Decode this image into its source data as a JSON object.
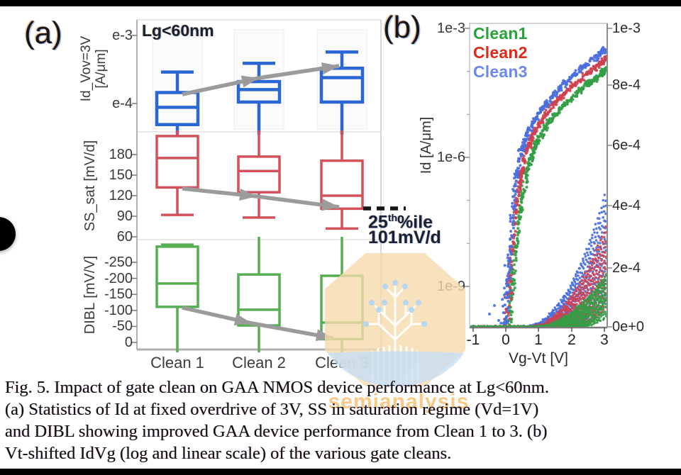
{
  "figure": {
    "panel_a_label": "(a)",
    "panel_b_label": "(b)",
    "arrow_color": "#9b9b9b",
    "annotation": {
      "p1": "25",
      "sup": "th",
      "p2": "%ile",
      "value": "101mV/d"
    }
  },
  "chart_data": [
    {
      "type": "box",
      "title": "Lg<60nm",
      "categories": [
        "Clean 1",
        "Clean 2",
        "Clean 3"
      ],
      "trend_arrows": "gray arrows from Clean 1 to Clean 2 to Clean 3 in each subplot",
      "annotation": "25th%ile 101mV/d (dashed line at SS_sat 25th percentile of Clean 3)",
      "subplots": [
        {
          "name": "Id_Vov=3V",
          "unit": "[A/μm]",
          "scale": "log",
          "color": "#2a66d4",
          "yticks": [
            "e-3",
            "e-4"
          ],
          "boxes": [
            {
              "category": "Clean 1",
              "whisker_high": 0.00029,
              "q3": 0.000145,
              "median": 8.8e-05,
              "q1": 4.9e-05,
              "whisker_low": null
            },
            {
              "category": "Clean 2",
              "whisker_high": 0.00039,
              "q3": 0.00021,
              "median": 0.00016,
              "q1": 0.000105,
              "whisker_low": null
            },
            {
              "category": "Clean 3",
              "whisker_high": 0.00057,
              "q3": 0.00033,
              "median": 0.00024,
              "q1": 0.000105,
              "whisker_low": null
            }
          ]
        },
        {
          "name": "SS_sat",
          "unit": "[mV/d]",
          "scale": "linear",
          "color": "#d4505b",
          "yticks": [
            180,
            150,
            120,
            90,
            60
          ],
          "boxes": [
            {
              "category": "Clean 1",
              "whisker_high": null,
              "q3": 207,
              "median": 175,
              "q1": 132,
              "whisker_low": 92
            },
            {
              "category": "Clean 2",
              "whisker_high": null,
              "q3": 177,
              "median": 156,
              "q1": 125,
              "whisker_low": 88
            },
            {
              "category": "Clean 3",
              "whisker_high": null,
              "q3": 171,
              "median": 120,
              "q1": 101,
              "whisker_low": 72
            }
          ]
        },
        {
          "name": "DIBL",
          "unit": "[mV/V]",
          "scale": "linear-inverted",
          "color": "#55ae52",
          "yticks": [
            -250,
            -200,
            -150,
            -100,
            -50,
            0
          ],
          "boxes": [
            {
              "category": "Clean 1",
              "whisker_high": -305,
              "q3": -299,
              "median": -184,
              "q1": -111,
              "whisker_low": null
            },
            {
              "category": "Clean 2",
              "whisker_high": null,
              "q3": -212,
              "median": -102,
              "q1": -53,
              "whisker_low": null
            },
            {
              "category": "Clean 3",
              "whisker_high": null,
              "q3": -208,
              "median": -62,
              "q1": -10,
              "whisker_low": null
            }
          ]
        }
      ]
    },
    {
      "type": "scatter",
      "title": "Vt-shifted IdVg (log and linear scale)",
      "xlabel": "Vg-Vt [V]",
      "xticks": [
        "-1",
        "0",
        "1",
        "2",
        "3"
      ],
      "x_range": [
        -1.1,
        3.05
      ],
      "left_axis": {
        "scale": "log",
        "label": "Id [A/μm]",
        "ticks": [
          "1e-3",
          "1e-6",
          "1e-9"
        ]
      },
      "right_axis": {
        "scale": "linear",
        "ticks": [
          "1e-3",
          "8e-4",
          "6e-4",
          "4e-4",
          "2e-4",
          "0e+0"
        ]
      },
      "series": [
        {
          "name": "Clean1",
          "color": "#339e44",
          "legend_color": "#27a337",
          "on_current_at_3V": "~8e-4"
        },
        {
          "name": "Clean2",
          "color": "#cf4150",
          "legend_color": "#e02819",
          "on_current_at_3V": "~9e-4"
        },
        {
          "name": "Clean3",
          "color": "#4b6fdd",
          "legend_color": "#6b89ea",
          "on_current_at_3V": "~9.5e-4"
        }
      ]
    }
  ],
  "watermark": {
    "text": "semianalysis"
  },
  "caption": {
    "lines": [
      "Fig. 5. Impact of gate clean on GAA NMOS device performance at Lg<60nm.",
      "(a) Statistics of Id at fixed overdrive of 3V, SS in saturation regime (Vd=1V)",
      "and DIBL showing improved GAA device performance from Clean 1 to 3. (b)",
      "Vt-shifted IdVg (log and linear scale) of the various gate cleans."
    ]
  }
}
